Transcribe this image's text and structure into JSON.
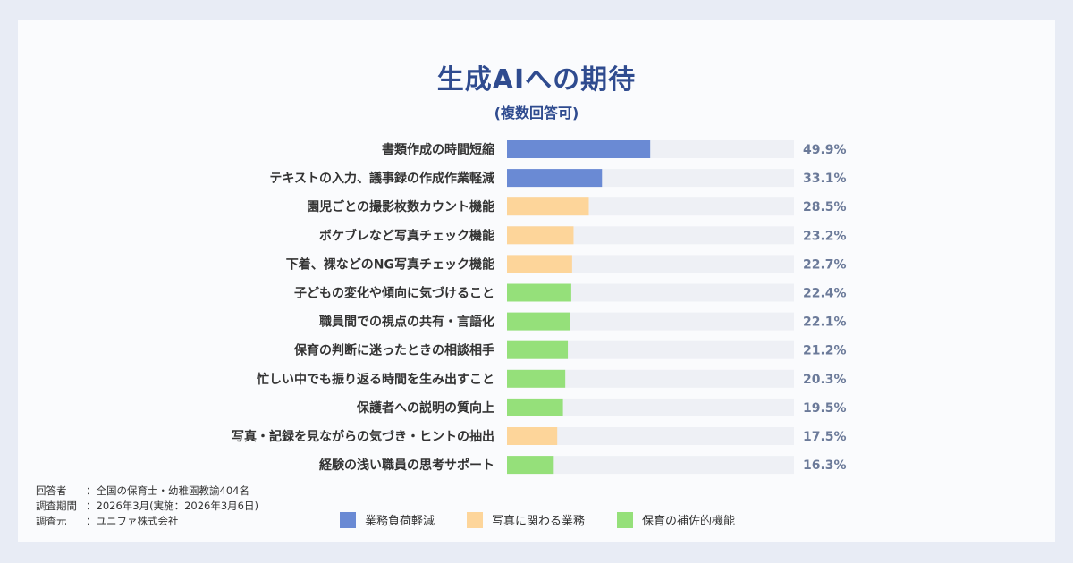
{
  "header": {
    "title": "生成AIへの期待",
    "subtitle": "(複数回答可)"
  },
  "colors": {
    "series_1": "#6a8ad4",
    "series_2": "#fdd59a",
    "series_3": "#95e07a",
    "track": "#eef0f5",
    "value_text": "#6b7a99",
    "label_text": "#333333"
  },
  "chart_data": {
    "type": "bar",
    "orientation": "horizontal",
    "xlim": [
      0,
      100
    ],
    "categories": [
      "書類作成の時間短縮",
      "テキストの入力、議事録の作成作業軽減",
      "園児ごとの撮影枚数カウント機能",
      "ボケブレなど写真チェック機能",
      "下着、裸などのNG写真チェック機能",
      "子どもの変化や傾向に気づけること",
      "職員間での視点の共有・言語化",
      "保育の判断に迷ったときの相談相手",
      "忙しい中でも振り返る時間を生み出すこと",
      "保護者への説明の質向上",
      "写真・記録を見ながらの気づき・ヒントの抽出",
      "経験の浅い職員の思考サポート"
    ],
    "values": [
      49.9,
      33.1,
      28.5,
      23.2,
      22.7,
      22.4,
      22.1,
      21.2,
      20.3,
      19.5,
      17.5,
      16.3
    ],
    "value_labels": [
      "49.9%",
      "33.1%",
      "28.5%",
      "23.2%",
      "22.7%",
      "22.4%",
      "22.1%",
      "21.2%",
      "20.3%",
      "19.5%",
      "17.5%",
      "16.3%"
    ],
    "groups": [
      0,
      0,
      1,
      1,
      1,
      2,
      2,
      2,
      2,
      2,
      1,
      2
    ],
    "legend": [
      "業務負荷軽減",
      "写真に関わる業務",
      "保育の補佐的機能"
    ],
    "legend_position": "bottom"
  },
  "footnote": [
    {
      "key": "回答者　",
      "value": "：全国の保育士・幼稚園教諭404名"
    },
    {
      "key": "調査期間",
      "value": "：2026年3月(実施：2026年3月6日)"
    },
    {
      "key": "調査元　",
      "value": "：ユニファ株式会社"
    }
  ]
}
